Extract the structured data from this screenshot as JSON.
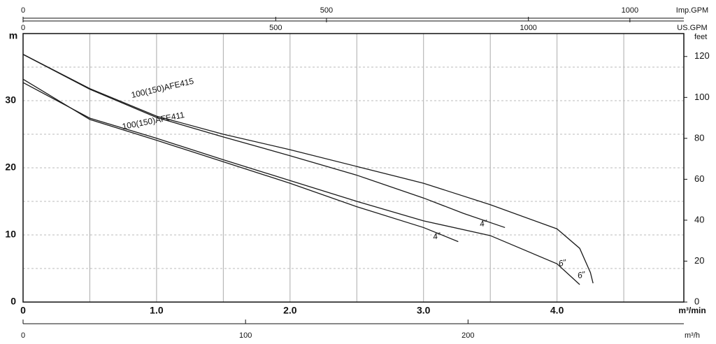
{
  "chart_data": {
    "type": "line",
    "xlabel": "m³/min",
    "ylabel": "m",
    "y2label": "feet",
    "xlim": [
      0,
      4.95
    ],
    "xticks": [
      0,
      {
        "value": 1,
        "label": "1.0"
      },
      {
        "value": 2,
        "label": "2.0"
      },
      {
        "value": 3,
        "label": "3.0"
      },
      {
        "value": 4,
        "label": "4.0"
      }
    ],
    "xminor": [
      0.5,
      1.5,
      2.5,
      3.5,
      4.5
    ],
    "ylim": [
      0,
      40
    ],
    "yticks": [
      0,
      10,
      20,
      30
    ],
    "yminor": [
      5,
      15,
      25,
      35
    ],
    "y2lim": [
      0,
      131.2
    ],
    "y2ticks": [
      0,
      20,
      40,
      60,
      80,
      100,
      120
    ],
    "top_axes": [
      {
        "label": "Imp.GPM",
        "lim": [
          0,
          1088.9
        ],
        "ticks": [
          0,
          500,
          1000
        ]
      },
      {
        "label": "US.GPM",
        "lim": [
          0,
          1307.6
        ],
        "ticks": [
          0,
          500,
          1000
        ]
      }
    ],
    "bottom_axis": {
      "label": "m³/h",
      "lim": [
        0,
        297
      ],
      "ticks": [
        0,
        100,
        200
      ]
    },
    "annotations": [
      "100(150)AFE415",
      "100(150)AFE411"
    ],
    "grid": true,
    "series": [
      {
        "name": "6\"",
        "color": "#1a1a1a",
        "x": [
          0,
          0.5,
          1.0,
          1.5,
          2.0,
          2.5,
          3.0,
          3.5,
          4.0,
          4.17,
          4.25,
          4.27
        ],
        "values": [
          36.9,
          31.8,
          27.7,
          25.0,
          22.7,
          20.2,
          17.7,
          14.5,
          10.9,
          8.0,
          4.4,
          2.8
        ]
      },
      {
        "name": "4\"",
        "color": "#1a1a1a",
        "x": [
          0,
          0.5,
          1.0,
          1.5,
          2.0,
          2.5,
          3.0,
          3.3,
          3.61
        ],
        "values": [
          36.9,
          31.7,
          27.5,
          24.6,
          21.8,
          18.9,
          15.5,
          13.2,
          11.1
        ]
      },
      {
        "name": "6\"",
        "color": "#1a1a1a",
        "x": [
          0,
          0.5,
          1.0,
          1.5,
          2.0,
          2.5,
          3.0,
          3.5,
          4.0,
          4.17
        ],
        "values": [
          32.7,
          27.4,
          24.4,
          21.2,
          18.1,
          15.0,
          12.1,
          9.9,
          5.7,
          2.6
        ]
      },
      {
        "name": "4\"",
        "color": "#1a1a1a",
        "x": [
          0,
          0.5,
          1.0,
          1.5,
          2.0,
          2.5,
          3.0,
          3.26
        ],
        "values": [
          33.2,
          27.2,
          24.1,
          20.9,
          17.7,
          14.2,
          11.1,
          9.0
        ]
      }
    ]
  }
}
